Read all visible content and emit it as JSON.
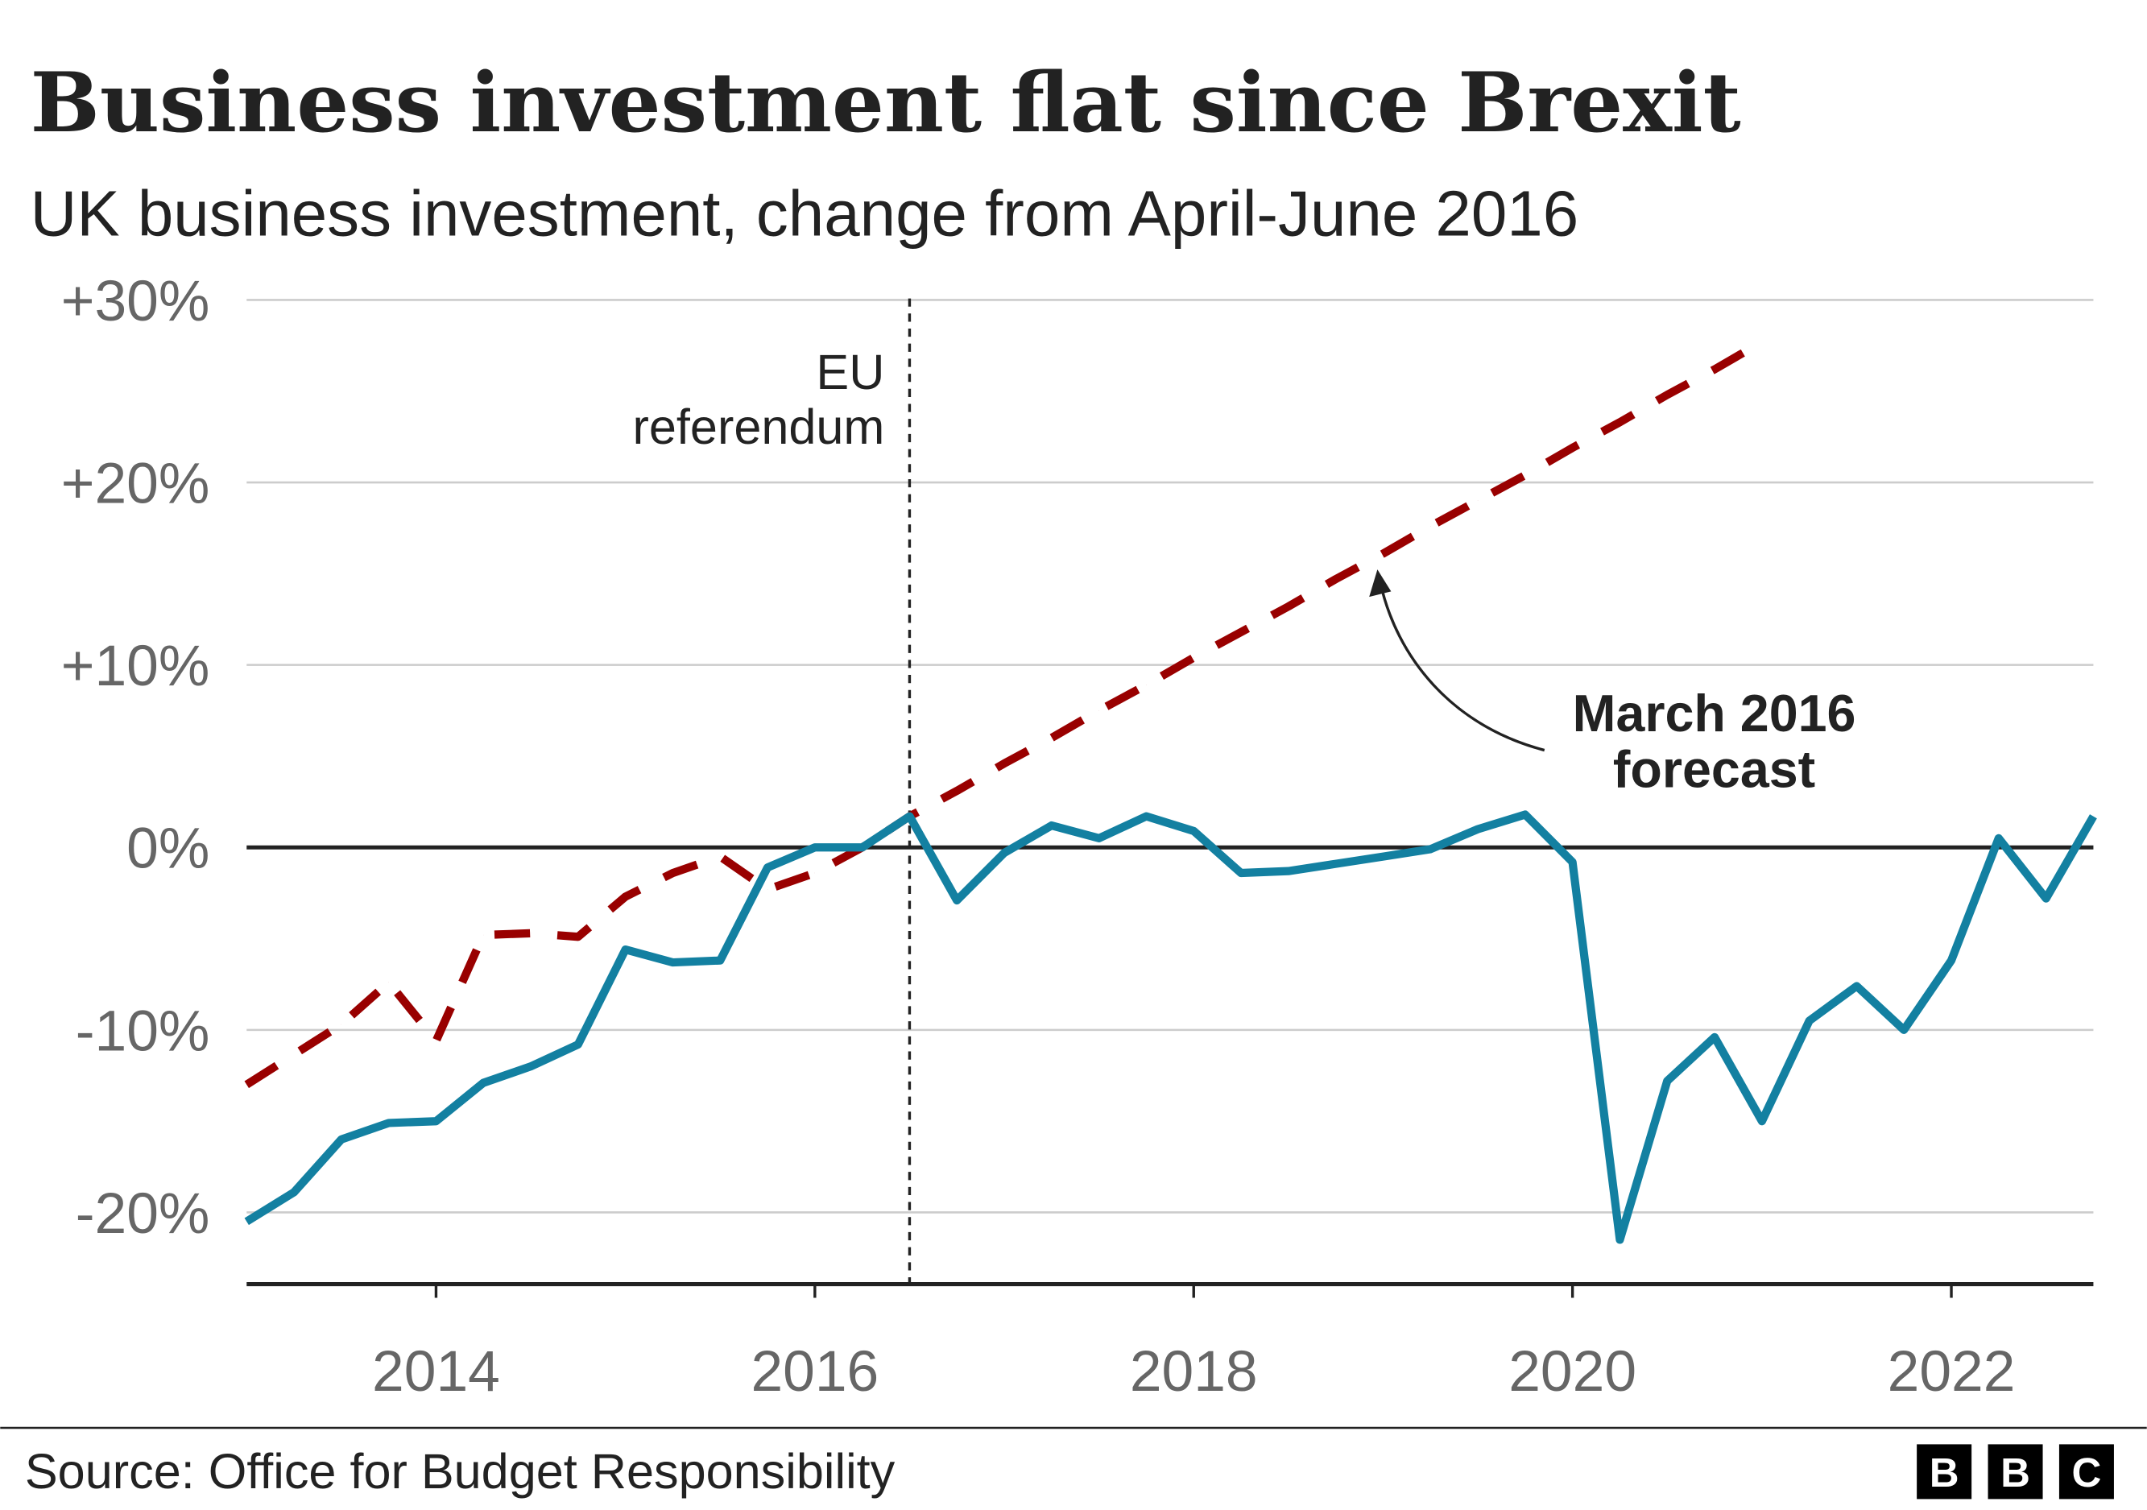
{
  "chart_data": {
    "type": "line",
    "title": "Business investment flat since Brexit",
    "subtitle": "UK business investment, change from April-June 2016",
    "xlim": [
      2013,
      2022.75
    ],
    "ylim": [
      -24,
      30
    ],
    "y_ticks": [
      30,
      20,
      10,
      0,
      -10,
      -20
    ],
    "y_tick_labels": [
      "+30%",
      "+20%",
      "+10%",
      "0%",
      "-10%",
      "-20%"
    ],
    "x_ticks": [
      2014,
      2016,
      2018,
      2020,
      2022
    ],
    "x_tick_labels": [
      "2014",
      "2016",
      "2018",
      "2020",
      "2022"
    ],
    "grid": true,
    "series": [
      {
        "style": "solid",
        "color": "#1380a1",
        "x": [
          2013,
          2013.25,
          2013.5,
          2013.75,
          2014,
          2014.25,
          2014.5,
          2014.75,
          2015,
          2015.25,
          2015.5,
          2015.75,
          2016,
          2016.25,
          2016.5,
          2016.75,
          2017,
          2017.25,
          2017.5,
          2017.75,
          2018,
          2018.25,
          2018.5,
          2018.75,
          2019,
          2019.25,
          2019.5,
          2019.75,
          2020,
          2020.25,
          2020.5,
          2020.75,
          2021,
          2021.25,
          2021.5,
          2021.75,
          2022,
          2022.25,
          2022.5,
          2022.75
        ],
        "y": [
          -20.5,
          -18.9,
          -16.0,
          -15.1,
          -15.0,
          -12.9,
          -12.0,
          -10.8,
          -5.6,
          -6.3,
          -6.2,
          -1.1,
          0,
          0,
          1.7,
          -2.9,
          -0.3,
          1.2,
          0.5,
          1.7,
          0.9,
          -1.4,
          -1.3,
          -0.9,
          -0.5,
          -0.1,
          1.0,
          1.8,
          -0.8,
          -21.5,
          -12.8,
          -10.4,
          -15.0,
          -9.5,
          -7.6,
          -10.0,
          -6.2,
          0.5,
          -2.8,
          1.7
        ]
      },
      {
        "name": "March 2016 forecast",
        "style": "dashed",
        "color": "#990000",
        "x": [
          2013,
          2013.5,
          2013.75,
          2014,
          2014.25,
          2014.5,
          2014.75,
          2015,
          2015.25,
          2015.5,
          2015.75,
          2016,
          2016.25,
          2016.5,
          2016.75,
          2017,
          2017.25,
          2017.5,
          2017.75,
          2018,
          2018.25,
          2018.5,
          2018.75,
          2019,
          2019.25,
          2019.5,
          2019.75,
          2020,
          2020.25,
          2020.5,
          2020.75,
          2020.9
        ],
        "y": [
          -13,
          -9.7,
          -7.4,
          -10.6,
          -4.8,
          -4.7,
          -4.9,
          -2.7,
          -1.4,
          -0.5,
          -2.3,
          -1.4,
          0,
          1.7,
          3.1,
          4.6,
          6.0,
          7.5,
          8.9,
          10.4,
          11.8,
          13.2,
          14.7,
          16.1,
          17.6,
          19.0,
          20.4,
          21.9,
          23.3,
          24.8,
          26.2,
          27.1
        ]
      }
    ],
    "annotations": {
      "referendum_line_x": 2016.5,
      "referendum_label_1": "EU",
      "referendum_label_2": "referendum",
      "forecast_label_1": "March 2016",
      "forecast_label_2": "forecast"
    },
    "source": "Source: Office for Budget Responsibility",
    "logo": [
      "B",
      "B",
      "C"
    ]
  }
}
